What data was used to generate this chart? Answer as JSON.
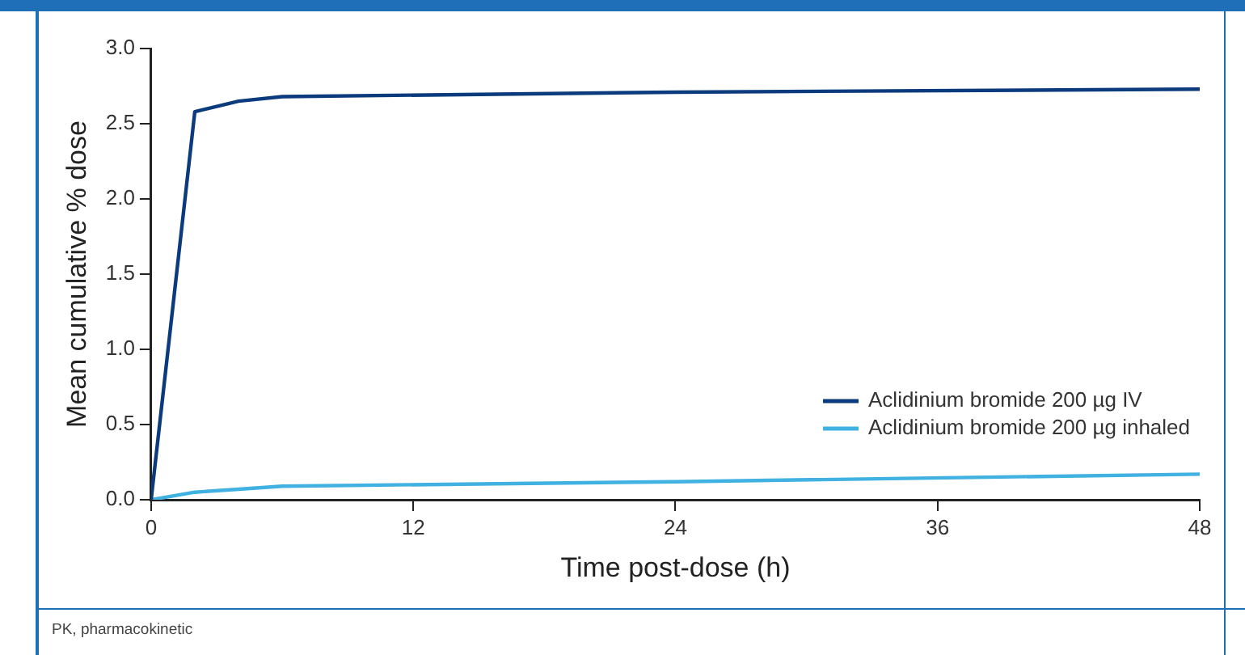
{
  "chart_data": {
    "type": "line",
    "xlabel": "Time post-dose (h)",
    "ylabel": "Mean cumulative % dose",
    "x": [
      0,
      2,
      4,
      6,
      24,
      48
    ],
    "series": [
      {
        "name": "Aclidinium bromide 200 µg IV",
        "color": "#0b3b7d",
        "values": [
          0,
          2.58,
          2.65,
          2.68,
          2.71,
          2.73
        ]
      },
      {
        "name": "Aclidinium bromide 200 µg inhaled",
        "color": "#41b1e1",
        "values": [
          0,
          0.05,
          0.07,
          0.09,
          0.12,
          0.17
        ]
      }
    ],
    "xlim": [
      0,
      48
    ],
    "xticks": [
      0,
      12,
      24,
      36,
      48
    ],
    "ylim": [
      0,
      3
    ],
    "yticks": [
      {
        "value": 0,
        "label": "0.0"
      },
      {
        "value": 0.5,
        "label": "0.5"
      },
      {
        "value": 1,
        "label": "1.0"
      },
      {
        "value": 1.5,
        "label": "1.5"
      },
      {
        "value": 2,
        "label": "2.0"
      },
      {
        "value": 2.5,
        "label": "2.5"
      },
      {
        "value": 3,
        "label": "3.0"
      }
    ],
    "grid": false,
    "legend": "bottom right",
    "marker": "none",
    "line_style": "solid",
    "annotations": [
      "PK, pharmacokinetic"
    ]
  }
}
